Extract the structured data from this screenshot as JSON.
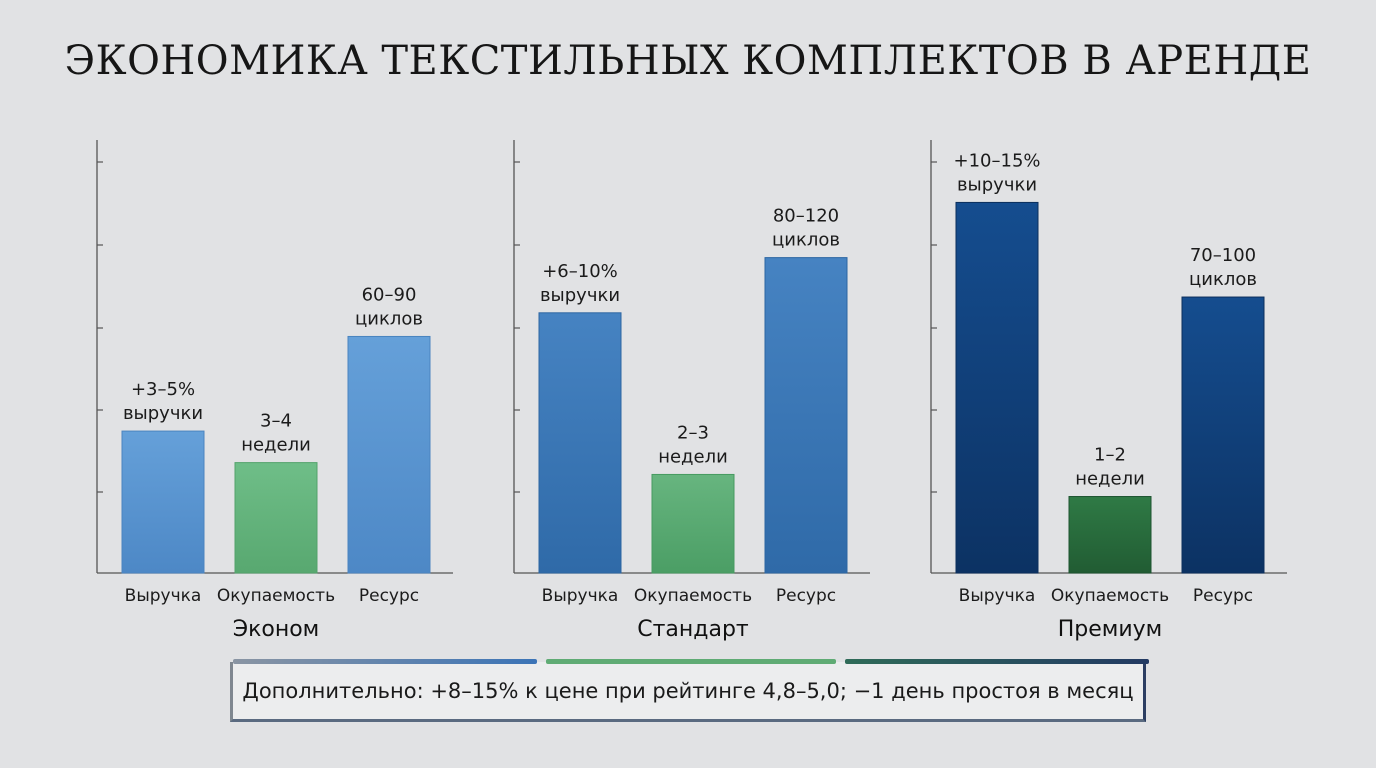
{
  "title": "ЭКОНОМИКА ТЕКСТИЛЬНЫХ КОМПЛЕКТОВ В АРЕНДЕ",
  "colors": {
    "economy_blue": "#5b97d2",
    "standard_blue": "#3c78b8",
    "premium_blue": "#123f78",
    "economy_green": "#65b57e",
    "standard_green": "#58a870",
    "premium_green": "#2a6b3c",
    "axis": "#555555"
  },
  "chart_data": [
    {
      "type": "bar",
      "subtitle": "Эконом",
      "categories": [
        "Выручка",
        "Окупаемость",
        "Ресурс"
      ],
      "values": [
        1.8,
        1.4,
        3.0
      ],
      "ylim": [
        0,
        5.2
      ],
      "grid": false,
      "labels": [
        [
          "+3–5%",
          "выручки"
        ],
        [
          "3–4",
          "недели"
        ],
        [
          "60–90",
          "циклов"
        ]
      ]
    },
    {
      "type": "bar",
      "subtitle": "Стандарт",
      "categories": [
        "Выручка",
        "Окупаемость",
        "Ресурс"
      ],
      "values": [
        3.3,
        1.25,
        4.0
      ],
      "ylim": [
        0,
        5.2
      ],
      "grid": false,
      "labels": [
        [
          "+6–10%",
          "выручки"
        ],
        [
          "2–3",
          "недели"
        ],
        [
          "80–120",
          "циклов"
        ]
      ]
    },
    {
      "type": "bar",
      "subtitle": "Премиум",
      "categories": [
        "Выручка",
        "Окупаемость",
        "Ресурс"
      ],
      "values": [
        4.7,
        0.97,
        3.5
      ],
      "ylim": [
        0,
        5.2
      ],
      "grid": false,
      "labels": [
        [
          "+10–15%",
          "выручки"
        ],
        [
          "1–2",
          "недели"
        ],
        [
          "70–100",
          "циклов"
        ]
      ]
    }
  ],
  "note": "Дополнительно: +8–15% к цене при рейтинге 4,8–5,0; −1 день простоя в месяц"
}
